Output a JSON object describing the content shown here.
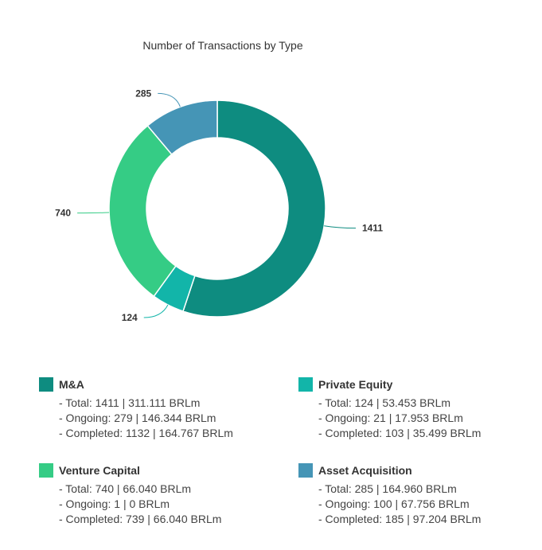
{
  "colors": {
    "ma": "#0e8c80",
    "pe": "#12b5a9",
    "vc": "#35cc85",
    "aa": "#4595b6"
  },
  "chart_data": {
    "type": "pie",
    "title": "Number of Transactions by Type",
    "donut": true,
    "categories": [
      "M&A",
      "Private Equity",
      "Venture Capital",
      "Asset Acquisition"
    ],
    "values": [
      1411,
      124,
      740,
      285
    ],
    "data_labels": [
      "1411",
      "124",
      "740",
      "285"
    ],
    "legend": "bottom",
    "colors": [
      "#0e8c80",
      "#12b5a9",
      "#35cc85",
      "#4595b6"
    ]
  },
  "legend": [
    {
      "name": "M&A",
      "color_key": "ma",
      "total": "- Total: 1411 | 311.111 BRLm",
      "ongoing": "- Ongoing: 279 | 146.344 BRLm",
      "completed": "- Completed: 1132 | 164.767 BRLm"
    },
    {
      "name": "Private Equity",
      "color_key": "pe",
      "total": "- Total: 124 | 53.453 BRLm",
      "ongoing": "- Ongoing: 21 | 17.953 BRLm",
      "completed": "- Completed: 103 | 35.499 BRLm"
    },
    {
      "name": "Venture Capital",
      "color_key": "vc",
      "total": "- Total: 740 | 66.040 BRLm",
      "ongoing": "- Ongoing: 1 | 0 BRLm",
      "completed": "- Completed: 739 | 66.040 BRLm"
    },
    {
      "name": "Asset Acquisition",
      "color_key": "aa",
      "total": "- Total: 285 | 164.960 BRLm",
      "ongoing": "- Ongoing: 100 | 67.756 BRLm",
      "completed": "- Completed: 185 | 97.204 BRLm"
    }
  ]
}
